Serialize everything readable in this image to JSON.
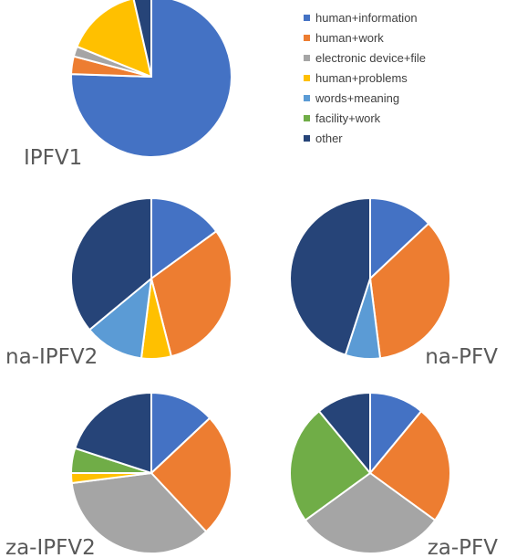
{
  "legend": [
    {
      "name": "human+information",
      "color": "#4472C4"
    },
    {
      "name": "human+work",
      "color": "#ED7D31"
    },
    {
      "name": "electronic device+file",
      "color": "#A5A5A5"
    },
    {
      "name": "human+problems",
      "color": "#FFC000"
    },
    {
      "name": "words+meaning",
      "color": "#5B9BD5"
    },
    {
      "name": "facility+work",
      "color": "#70AD47"
    },
    {
      "name": "other",
      "color": "#264478"
    }
  ],
  "chart_data": [
    {
      "type": "pie",
      "title": "IPFV1",
      "categories": [
        "human+information",
        "human+work",
        "electronic device+file",
        "human+problems",
        "words+meaning",
        "facility+work",
        "other"
      ],
      "values": [
        74,
        3.5,
        2,
        15,
        0,
        0,
        3.5
      ]
    },
    {
      "type": "pie",
      "title": "na-IPFV2",
      "categories": [
        "human+information",
        "human+work",
        "electronic device+file",
        "human+problems",
        "words+meaning",
        "facility+work",
        "other"
      ],
      "values": [
        15,
        31,
        0,
        6,
        12,
        0,
        36
      ]
    },
    {
      "type": "pie",
      "title": "na-PFV",
      "categories": [
        "human+information",
        "human+work",
        "electronic device+file",
        "human+problems",
        "words+meaning",
        "facility+work",
        "other"
      ],
      "values": [
        13,
        35,
        0,
        0,
        7,
        0,
        45
      ]
    },
    {
      "type": "pie",
      "title": "za-IPFV2",
      "categories": [
        "human+information",
        "human+work",
        "electronic device+file",
        "human+problems",
        "words+meaning",
        "facility+work",
        "other"
      ],
      "values": [
        13,
        25,
        35,
        2,
        0,
        5,
        20
      ]
    },
    {
      "type": "pie",
      "title": "za-PFV",
      "categories": [
        "human+information",
        "human+work",
        "electronic device+file",
        "human+problems",
        "words+meaning",
        "facility+work",
        "other"
      ],
      "values": [
        11,
        24,
        30,
        0,
        0,
        24,
        11
      ]
    }
  ]
}
